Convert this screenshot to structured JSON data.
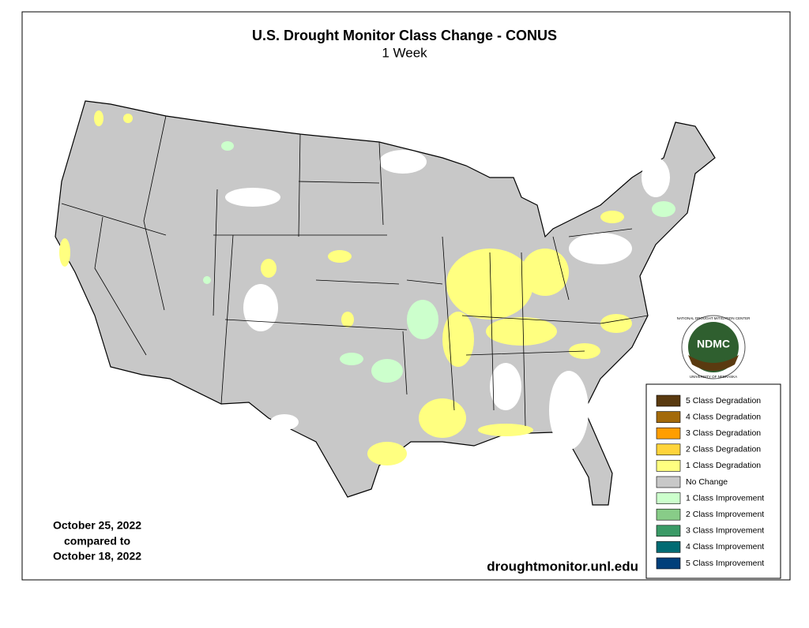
{
  "header": {
    "title": "U.S. Drought Monitor Class Change - CONUS",
    "subtitle": "1 Week"
  },
  "dates": [
    "October 25, 2022",
    "compared to",
    "October 18, 2022"
  ],
  "website": "droughtmonitor.unl.edu",
  "logo": {
    "name": "NDMC",
    "top": "NATIONAL DROUGHT MITIGATION CENTER",
    "bottom": "UNIVERSITY OF NEBRASKA"
  },
  "legend": [
    {
      "label": "5 Class Degradation",
      "color": "#5a3a10"
    },
    {
      "label": "4 Class Degradation",
      "color": "#a36a0a"
    },
    {
      "label": "3 Class Degradation",
      "color": "#ff9e00"
    },
    {
      "label": "2 Class Degradation",
      "color": "#ffd43b"
    },
    {
      "label": "1 Class Degradation",
      "color": "#ffff80"
    },
    {
      "label": "No Change",
      "color": "#c8c8c8"
    },
    {
      "label": "1 Class Improvement",
      "color": "#ccffcc"
    },
    {
      "label": "2 Class Improvement",
      "color": "#88cc88"
    },
    {
      "label": "3 Class Improvement",
      "color": "#3a9a66"
    },
    {
      "label": "4 Class Improvement",
      "color": "#006b73"
    },
    {
      "label": "5 Class Improvement",
      "color": "#003f7a"
    }
  ]
}
